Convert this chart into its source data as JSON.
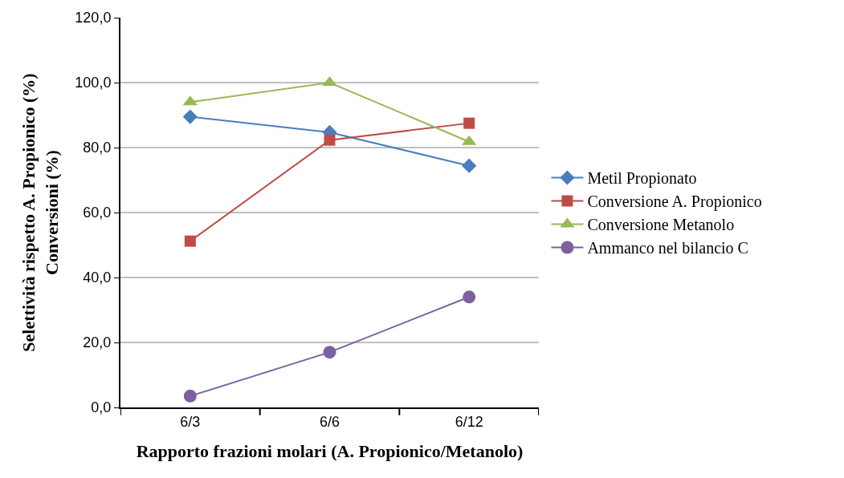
{
  "chart_data": {
    "type": "line",
    "xlabel": "Rapporto frazioni molari (A. Propionico/Metanolo)",
    "ylabel": "Selettività rispetto A. Propionico (%)\nConversioni (%)",
    "categories": [
      "6/3",
      "6/6",
      "6/12"
    ],
    "series": [
      {
        "name": "Metil Propionato",
        "color": "#4a7ebb",
        "marker": "diamond",
        "values": [
          89.5,
          84.7,
          74.4
        ]
      },
      {
        "name": "Conversione A. Propionico",
        "color": "#be4b48",
        "marker": "square",
        "values": [
          51.2,
          82.3,
          87.5
        ]
      },
      {
        "name": "Conversione Metanolo",
        "color": "#98b954",
        "marker": "triangle",
        "values": [
          94.0,
          100.0,
          81.8
        ]
      },
      {
        "name": "Ammanco nel bilancio C",
        "color": "#7d60a0",
        "marker": "circle",
        "values": [
          3.5,
          17.0,
          34.0
        ]
      }
    ],
    "ylim": [
      0,
      120
    ],
    "yticks": [
      {
        "value": 0,
        "label": "0,0"
      },
      {
        "value": 20,
        "label": "20,0"
      },
      {
        "value": 40,
        "label": "40,0"
      },
      {
        "value": 60,
        "label": "60,0"
      },
      {
        "value": 80,
        "label": "80,0"
      },
      {
        "value": 100,
        "label": "100,0"
      },
      {
        "value": 120,
        "label": "120,0"
      }
    ],
    "grid": "y",
    "legend": "right",
    "line_style": "solid"
  }
}
